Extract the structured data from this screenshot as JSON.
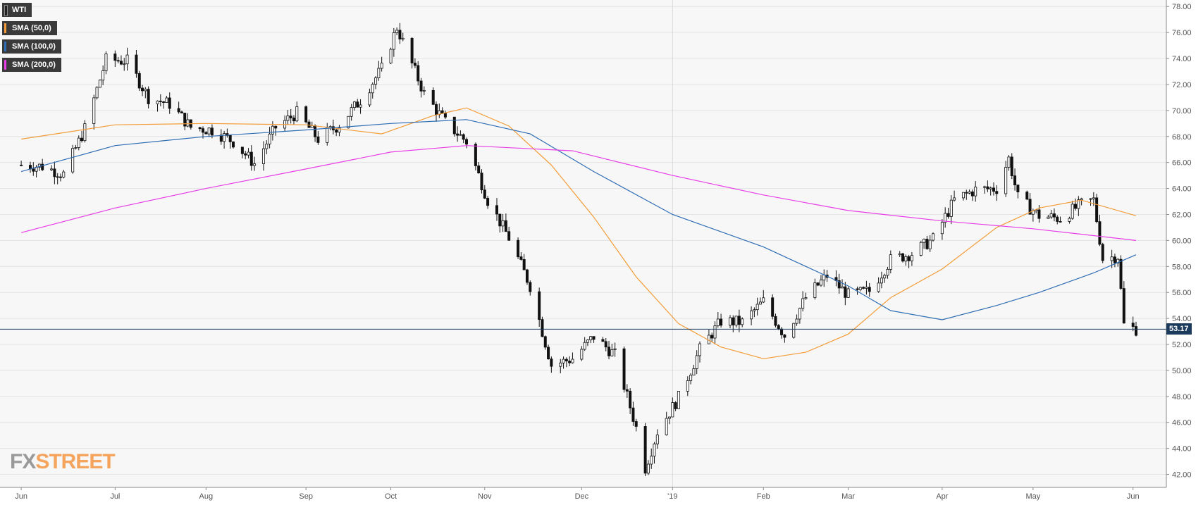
{
  "legend": [
    {
      "label": "WTI",
      "color": "#222222"
    },
    {
      "label": "SMA (50,0)",
      "color": "#f39c38"
    },
    {
      "label": "SMA (100,0)",
      "color": "#2f6db5"
    },
    {
      "label": "SMA (200,0)",
      "color": "#e83ee8"
    }
  ],
  "watermark": {
    "fx": "FX",
    "street": "STREET"
  },
  "last_price_label": "53.17",
  "chart_data": {
    "type": "candlestick",
    "title": "",
    "xlabel": "",
    "ylabel": "",
    "ylim": [
      41,
      78.5
    ],
    "y_ticks": [
      "78.00",
      "76.00",
      "74.00",
      "72.00",
      "70.00",
      "68.00",
      "66.00",
      "64.00",
      "62.00",
      "60.00",
      "58.00",
      "56.00",
      "54.00",
      "52.00",
      "50.00",
      "48.00",
      "46.00",
      "44.00",
      "42.00"
    ],
    "x_ticks": [
      {
        "label": "Jun",
        "date": "2018-06-01"
      },
      {
        "label": "Jul",
        "date": "2018-07-02"
      },
      {
        "label": "Aug",
        "date": "2018-08-01"
      },
      {
        "label": "Sep",
        "date": "2018-09-03"
      },
      {
        "label": "Oct",
        "date": "2018-10-01"
      },
      {
        "label": "Nov",
        "date": "2018-11-01"
      },
      {
        "label": "Dec",
        "date": "2018-12-03"
      },
      {
        "label": "'19",
        "date": "2019-01-02"
      },
      {
        "label": "Feb",
        "date": "2019-02-01"
      },
      {
        "label": "Mar",
        "date": "2019-03-01"
      },
      {
        "label": "Apr",
        "date": "2019-04-01"
      },
      {
        "label": "May",
        "date": "2019-05-01"
      },
      {
        "label": "Jun",
        "date": "2019-06-03"
      }
    ],
    "year_divider_date": "2019-01-02",
    "last_price": 53.17,
    "series": [
      {
        "name": "WTI",
        "kind": "close",
        "color": "#222222",
        "points": [
          [
            "2018-06-01",
            65.8
          ],
          [
            "2018-06-08",
            65.7
          ],
          [
            "2018-06-15",
            65.1
          ],
          [
            "2018-06-22",
            68.6
          ],
          [
            "2018-06-29",
            73.9
          ],
          [
            "2018-07-06",
            73.8
          ],
          [
            "2018-07-13",
            71.0
          ],
          [
            "2018-07-20",
            70.5
          ],
          [
            "2018-07-27",
            68.7
          ],
          [
            "2018-08-03",
            68.5
          ],
          [
            "2018-08-10",
            67.6
          ],
          [
            "2018-08-17",
            65.9
          ],
          [
            "2018-08-24",
            68.7
          ],
          [
            "2018-08-31",
            69.8
          ],
          [
            "2018-09-07",
            67.8
          ],
          [
            "2018-09-14",
            68.9
          ],
          [
            "2018-09-21",
            70.8
          ],
          [
            "2018-09-28",
            73.2
          ],
          [
            "2018-10-03",
            76.4
          ],
          [
            "2018-10-12",
            71.3
          ],
          [
            "2018-10-19",
            69.1
          ],
          [
            "2018-10-26",
            67.6
          ],
          [
            "2018-11-02",
            63.1
          ],
          [
            "2018-11-09",
            60.2
          ],
          [
            "2018-11-16",
            56.5
          ],
          [
            "2018-11-23",
            50.4
          ],
          [
            "2018-11-30",
            50.9
          ],
          [
            "2018-12-07",
            52.6
          ],
          [
            "2018-12-14",
            51.2
          ],
          [
            "2018-12-21",
            45.6
          ],
          [
            "2018-12-24",
            42.5
          ],
          [
            "2018-12-28",
            45.3
          ],
          [
            "2019-01-04",
            47.9
          ],
          [
            "2019-01-11",
            51.6
          ],
          [
            "2019-01-18",
            53.8
          ],
          [
            "2019-01-25",
            53.7
          ],
          [
            "2019-02-01",
            55.3
          ],
          [
            "2019-02-08",
            52.7
          ],
          [
            "2019-02-15",
            55.6
          ],
          [
            "2019-02-22",
            57.3
          ],
          [
            "2019-03-01",
            55.8
          ],
          [
            "2019-03-08",
            56.1
          ],
          [
            "2019-03-15",
            58.5
          ],
          [
            "2019-03-22",
            59.0
          ],
          [
            "2019-03-29",
            60.1
          ],
          [
            "2019-04-05",
            63.1
          ],
          [
            "2019-04-12",
            63.9
          ],
          [
            "2019-04-19",
            64.0
          ],
          [
            "2019-04-23",
            66.3
          ],
          [
            "2019-04-26",
            63.3
          ],
          [
            "2019-05-03",
            61.9
          ],
          [
            "2019-05-10",
            61.7
          ],
          [
            "2019-05-17",
            62.8
          ],
          [
            "2019-05-21",
            63.1
          ],
          [
            "2019-05-24",
            58.6
          ],
          [
            "2019-05-29",
            58.8
          ],
          [
            "2019-05-31",
            53.5
          ],
          [
            "2019-06-04",
            53.17
          ]
        ]
      },
      {
        "name": "SMA (50,0)",
        "color": "#f39c38",
        "points": [
          [
            "2018-06-01",
            67.8
          ],
          [
            "2018-07-02",
            68.9
          ],
          [
            "2018-08-01",
            69.0
          ],
          [
            "2018-09-03",
            68.9
          ],
          [
            "2018-09-28",
            68.2
          ],
          [
            "2018-10-15",
            69.6
          ],
          [
            "2018-10-26",
            70.2
          ],
          [
            "2018-11-09",
            68.8
          ],
          [
            "2018-11-23",
            65.8
          ],
          [
            "2018-12-07",
            61.8
          ],
          [
            "2018-12-21",
            57.2
          ],
          [
            "2019-01-04",
            53.6
          ],
          [
            "2019-01-18",
            51.8
          ],
          [
            "2019-02-01",
            50.9
          ],
          [
            "2019-02-15",
            51.4
          ],
          [
            "2019-03-01",
            52.8
          ],
          [
            "2019-03-15",
            55.6
          ],
          [
            "2019-04-01",
            57.8
          ],
          [
            "2019-04-19",
            61.0
          ],
          [
            "2019-05-03",
            62.5
          ],
          [
            "2019-05-17",
            63.1
          ],
          [
            "2019-06-04",
            61.9
          ]
        ]
      },
      {
        "name": "SMA (100,0)",
        "color": "#2f6db5",
        "points": [
          [
            "2018-06-01",
            65.3
          ],
          [
            "2018-07-02",
            67.3
          ],
          [
            "2018-08-01",
            68.0
          ],
          [
            "2018-09-03",
            68.5
          ],
          [
            "2018-10-01",
            69.0
          ],
          [
            "2018-10-26",
            69.3
          ],
          [
            "2018-11-16",
            68.2
          ],
          [
            "2018-12-07",
            65.3
          ],
          [
            "2019-01-02",
            62.0
          ],
          [
            "2019-02-01",
            59.5
          ],
          [
            "2019-03-01",
            56.5
          ],
          [
            "2019-03-15",
            54.6
          ],
          [
            "2019-04-01",
            53.9
          ],
          [
            "2019-04-19",
            55.0
          ],
          [
            "2019-05-03",
            56.0
          ],
          [
            "2019-05-21",
            57.5
          ],
          [
            "2019-06-04",
            58.9
          ]
        ]
      },
      {
        "name": "SMA (200,0)",
        "color": "#e83ee8",
        "points": [
          [
            "2018-06-01",
            60.6
          ],
          [
            "2018-07-02",
            62.5
          ],
          [
            "2018-08-01",
            64.0
          ],
          [
            "2018-09-03",
            65.5
          ],
          [
            "2018-10-01",
            66.8
          ],
          [
            "2018-10-26",
            67.3
          ],
          [
            "2018-11-30",
            66.9
          ],
          [
            "2019-01-02",
            65.0
          ],
          [
            "2019-02-01",
            63.5
          ],
          [
            "2019-03-01",
            62.3
          ],
          [
            "2019-04-01",
            61.5
          ],
          [
            "2019-05-01",
            60.9
          ],
          [
            "2019-06-04",
            60.0
          ]
        ]
      }
    ]
  }
}
